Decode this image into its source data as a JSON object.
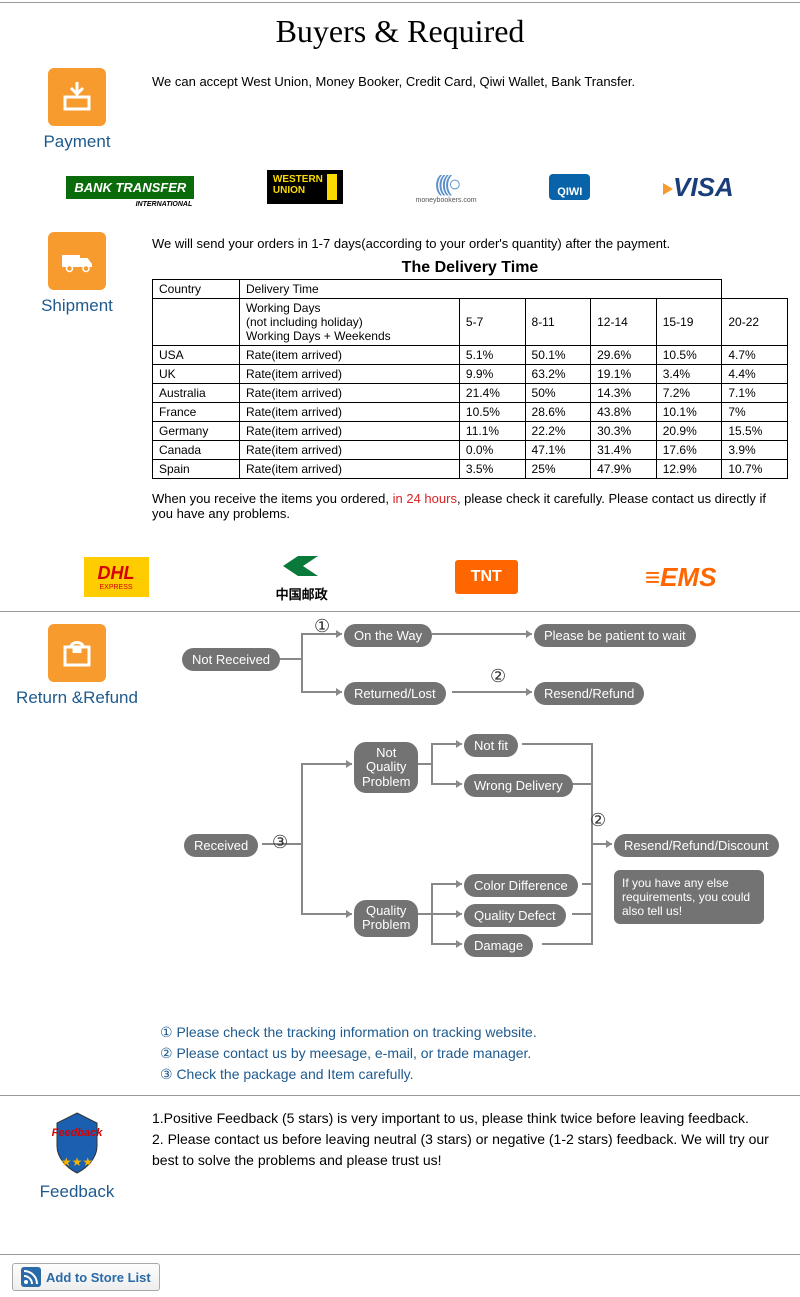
{
  "title": "Buyers & Required",
  "payment": {
    "label": "Payment",
    "text": "We can accept West Union, Money Booker, Credit Card, Qiwi Wallet, Bank Transfer.",
    "logos": {
      "bank": "BANK TRANSFER",
      "bank_sub": "INTERNATIONAL",
      "wu1": "WESTERN",
      "wu2": "UNION",
      "mb_sub": "moneybookers.com",
      "qiwi": "QIWI",
      "visa": "VISA"
    }
  },
  "shipment": {
    "label": "Shipment",
    "intro": "We will send your orders in 1-7 days(according to your order's quantity) after the payment.",
    "table_title": "The Delivery Time",
    "table": {
      "h_country": "Country",
      "h_delivery": "Delivery Time",
      "wd1": "Working Days",
      "wd2": "(not including holiday)",
      "wd3": "Working Days + Weekends",
      "cols": [
        "5-7",
        "8-11",
        "12-14",
        "15-19",
        "20-22"
      ],
      "rate_label": "Rate(item arrived)",
      "rows": [
        {
          "c": "USA",
          "v": [
            "5.1%",
            "50.1%",
            "29.6%",
            "10.5%",
            "4.7%"
          ]
        },
        {
          "c": "UK",
          "v": [
            "9.9%",
            "63.2%",
            "19.1%",
            "3.4%",
            "4.4%"
          ]
        },
        {
          "c": "Australia",
          "v": [
            "21.4%",
            "50%",
            "14.3%",
            "7.2%",
            "7.1%"
          ]
        },
        {
          "c": "France",
          "v": [
            "10.5%",
            "28.6%",
            "43.8%",
            "10.1%",
            "7%"
          ]
        },
        {
          "c": "Germany",
          "v": [
            "11.1%",
            "22.2%",
            "30.3%",
            "20.9%",
            "15.5%"
          ]
        },
        {
          "c": "Canada",
          "v": [
            "0.0%",
            "47.1%",
            "31.4%",
            "17.6%",
            "3.9%"
          ]
        },
        {
          "c": "Spain",
          "v": [
            "3.5%",
            "25%",
            "47.9%",
            "12.9%",
            "10.7%"
          ]
        }
      ]
    },
    "note_pre": "When you receive the items you ordered, ",
    "note_red": "in 24 hours",
    "note_post": ", please check it carefully. Please contact us directly if you have any problems.",
    "carriers": {
      "dhl": "DHL",
      "dhl_sub": "EXPRESS",
      "cp": "中国邮政",
      "tnt": "TNT",
      "ems": "EMS"
    }
  },
  "return": {
    "label": "Return &Refund",
    "nodes": {
      "not_received": "Not Received",
      "on_the_way": "On the Way",
      "please_wait": "Please be patient to wait",
      "returned_lost": "Returned/Lost",
      "resend_refund": "Resend/Refund",
      "received": "Received",
      "not_quality": "Not\nQuality\nProblem",
      "quality": "Quality\nProblem",
      "not_fit": "Not fit",
      "wrong_delivery": "Wrong Delivery",
      "color_diff": "Color Difference",
      "quality_defect": "Quality Defect",
      "damage": "Damage",
      "resend_discount": "Resend/Refund/Discount",
      "requirements": "If you have any else requirements, you could also tell us!"
    },
    "nums": {
      "n1": "①",
      "n2": "②",
      "n3": "③"
    },
    "notes": {
      "n1": "① Please check the tracking information on tracking website.",
      "n2": "② Please contact us by meesage, e-mail, or trade manager.",
      "n3": "③ Check the package and Item carefully."
    }
  },
  "feedback": {
    "label": "Feedback",
    "badge": "Feedback",
    "line1": "1.Positive Feedback (5 stars) is very important to us, please think twice before leaving feedback.",
    "line2": "2. Please contact us before leaving neutral (3 stars) or negative (1-2 stars) feedback. We will try our best to solve the problems and please trust us!"
  },
  "store_btn": "Add to Store List",
  "colors": {
    "accent": "#f79b2e",
    "title": "#1e5a8e",
    "node": "#737373"
  }
}
